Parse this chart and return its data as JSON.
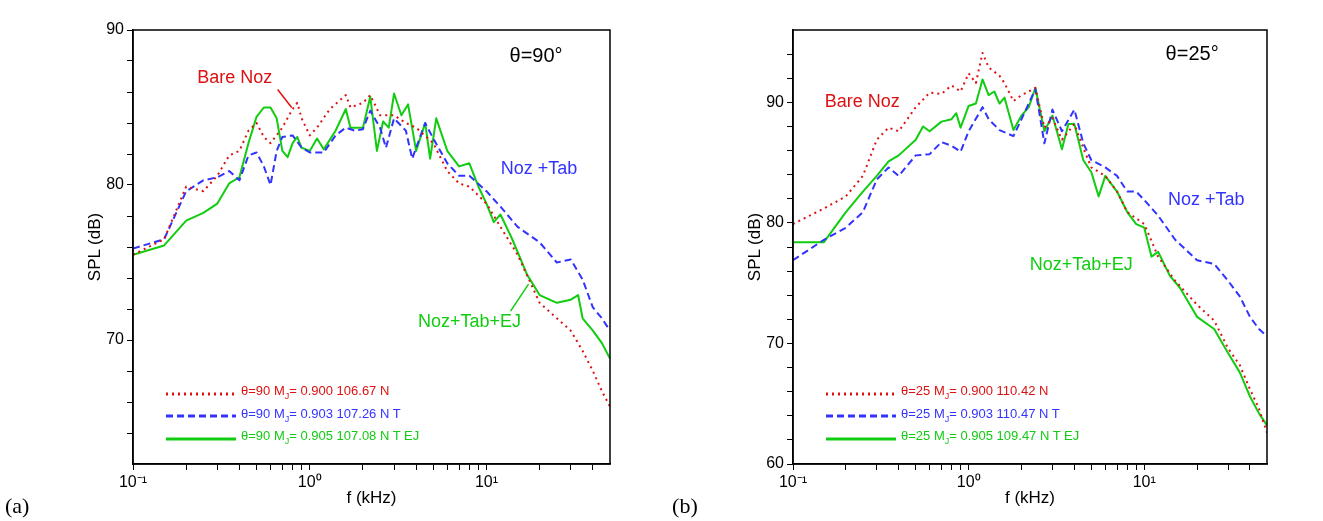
{
  "chart_data": [
    {
      "type": "line",
      "xlabel": "f (kHz)",
      "ylabel": "SPL (dB)",
      "log": "x",
      "xlim": [
        0.1,
        50
      ],
      "ylim": [
        62,
        90
      ],
      "xticks": [
        {
          "value": 0.1,
          "label": "10⁻¹"
        },
        {
          "value": 0.2,
          "label": null
        },
        {
          "value": 0.3,
          "label": null
        },
        {
          "value": 0.4,
          "label": null
        },
        {
          "value": 0.5,
          "label": null
        },
        {
          "value": 0.6,
          "label": null
        },
        {
          "value": 0.7,
          "label": null
        },
        {
          "value": 0.8,
          "label": null
        },
        {
          "value": 0.9,
          "label": null
        },
        {
          "value": 1,
          "label": "10⁰"
        },
        {
          "value": 2,
          "label": null
        },
        {
          "value": 3,
          "label": null
        },
        {
          "value": 4,
          "label": null
        },
        {
          "value": 5,
          "label": null
        },
        {
          "value": 6,
          "label": null
        },
        {
          "value": 7,
          "label": null
        },
        {
          "value": 8,
          "label": null
        },
        {
          "value": 9,
          "label": null
        },
        {
          "value": 10,
          "label": "10¹"
        },
        {
          "value": 20,
          "label": null
        },
        {
          "value": 30,
          "label": null
        },
        {
          "value": 40,
          "label": null
        }
      ],
      "yticks": [
        {
          "value": 64,
          "label": null
        },
        {
          "value": 66,
          "label": null
        },
        {
          "value": 68,
          "label": null
        },
        70,
        {
          "value": 72,
          "label": null
        },
        {
          "value": 74,
          "label": null
        },
        {
          "value": 76,
          "label": null
        },
        {
          "value": 78,
          "label": null
        },
        80,
        {
          "value": 82,
          "label": null
        },
        {
          "value": 84,
          "label": null
        },
        {
          "value": 86,
          "label": null
        },
        {
          "value": 88,
          "label": null
        },
        90
      ],
      "legend": "bottom left",
      "marker": "none",
      "series": [
        {
          "name": "θ=90 M$_{J}$= 0.900  106.67  N",
          "color": "#dd1111",
          "line_style": "dotted",
          "x": [
            0.1,
            0.15,
            0.2,
            0.25,
            0.3,
            0.35,
            0.4,
            0.45,
            0.5,
            0.55,
            0.6,
            0.7,
            0.8,
            0.85,
            0.9,
            1.0,
            1.1,
            1.3,
            1.6,
            1.7,
            2.0,
            2.2,
            2.5,
            3,
            3.5,
            4,
            5,
            6,
            7,
            8,
            10,
            12,
            15,
            20,
            25,
            30,
            35,
            40,
            45,
            50
          ],
          "values": [
            75.5,
            76.5,
            79.9,
            79.6,
            80.6,
            81.9,
            82.2,
            83.5,
            84.0,
            83.1,
            82.7,
            83.7,
            84.9,
            85.3,
            84.3,
            83.2,
            83.7,
            84.9,
            85.8,
            85.0,
            85.3,
            85.8,
            84.5,
            84.5,
            84.0,
            83.7,
            82.7,
            80.9,
            80.1,
            79.9,
            78.8,
            77.3,
            75.5,
            72.4,
            71.4,
            70.6,
            69.3,
            68.0,
            66.7,
            65.7
          ]
        },
        {
          "name": "θ=90 M$_{J}$= 0.903  107.26  N T",
          "color": "#3333ff",
          "line_style": "dashed",
          "x": [
            0.1,
            0.15,
            0.2,
            0.25,
            0.3,
            0.35,
            0.4,
            0.45,
            0.5,
            0.55,
            0.6,
            0.65,
            0.7,
            0.8,
            0.9,
            1.0,
            1.2,
            1.4,
            1.6,
            1.8,
            2.0,
            2.2,
            2.5,
            2.7,
            3,
            3.5,
            3.8,
            4.5,
            5,
            6,
            7,
            8,
            10,
            12,
            15,
            20,
            25,
            30,
            35,
            40,
            45,
            50
          ],
          "values": [
            75.9,
            76.5,
            79.6,
            80.3,
            80.5,
            80.9,
            80.3,
            81.9,
            82.1,
            81.2,
            80.0,
            82.2,
            83.1,
            83.2,
            82.4,
            82.1,
            82.1,
            83.2,
            83.7,
            83.5,
            83.6,
            84.8,
            83.7,
            82.4,
            84.3,
            83.5,
            81.7,
            84.0,
            83.0,
            81.4,
            80.6,
            80.6,
            79.6,
            78.6,
            77.3,
            76.3,
            75.0,
            75.2,
            73.9,
            72.1,
            71.4,
            70.6
          ]
        },
        {
          "name": "θ=90 M$_{J}$= 0.905  107.08  N T EJ",
          "color": "#11cc11",
          "line_style": "solid",
          "x": [
            0.1,
            0.15,
            0.2,
            0.25,
            0.3,
            0.35,
            0.4,
            0.45,
            0.5,
            0.55,
            0.6,
            0.65,
            0.7,
            0.75,
            0.8,
            0.85,
            0.9,
            1.0,
            1.1,
            1.2,
            1.4,
            1.6,
            1.7,
            2.0,
            2.2,
            2.4,
            2.6,
            2.8,
            3.0,
            3.3,
            3.6,
            4.0,
            4.5,
            4.8,
            5.2,
            6,
            7,
            8,
            9,
            10,
            11,
            12,
            14,
            17,
            20,
            25,
            30,
            33,
            35,
            40,
            45,
            50
          ],
          "values": [
            75.5,
            76.1,
            77.7,
            78.2,
            78.8,
            80.1,
            80.5,
            82.7,
            84.4,
            85.0,
            85.0,
            84.3,
            82.2,
            81.8,
            82.7,
            83.1,
            82.4,
            82.2,
            83.0,
            82.3,
            83.5,
            84.9,
            83.7,
            83.7,
            85.7,
            82.2,
            84.1,
            83.7,
            85.9,
            84.5,
            85.2,
            82.2,
            84.0,
            81.7,
            84.3,
            82.2,
            81.2,
            81.4,
            79.9,
            78.8,
            77.6,
            78.1,
            76.5,
            74.2,
            72.9,
            72.4,
            72.6,
            72.9,
            71.4,
            70.6,
            69.8,
            68.8
          ]
        }
      ],
      "annotations": [
        "θ=90°",
        {
          "text": "Bare Noz",
          "x": 0.79,
          "y": 85
        },
        "Noz +Tab",
        {
          "text": "Noz+Tab+EJ",
          "x": 17.3,
          "y": 73.6
        },
        "(a)"
      ]
    },
    {
      "type": "line",
      "xlabel": "f (kHz)",
      "ylabel": "SPL (dB)",
      "log": "x",
      "xlim": [
        0.1,
        50
      ],
      "ylim": [
        60,
        96
      ],
      "xticks": [
        {
          "value": 0.1,
          "label": "10⁻¹"
        },
        {
          "value": 0.2,
          "label": null
        },
        {
          "value": 0.3,
          "label": null
        },
        {
          "value": 0.4,
          "label": null
        },
        {
          "value": 0.5,
          "label": null
        },
        {
          "value": 0.6,
          "label": null
        },
        {
          "value": 0.7,
          "label": null
        },
        {
          "value": 0.8,
          "label": null
        },
        {
          "value": 0.9,
          "label": null
        },
        {
          "value": 1,
          "label": "10⁰"
        },
        {
          "value": 2,
          "label": null
        },
        {
          "value": 3,
          "label": null
        },
        {
          "value": 4,
          "label": null
        },
        {
          "value": 5,
          "label": null
        },
        {
          "value": 6,
          "label": null
        },
        {
          "value": 7,
          "label": null
        },
        {
          "value": 8,
          "label": null
        },
        {
          "value": 9,
          "label": null
        },
        {
          "value": 10,
          "label": "10¹"
        },
        {
          "value": 20,
          "label": null
        },
        {
          "value": 30,
          "label": null
        },
        {
          "value": 40,
          "label": null
        }
      ],
      "yticks": [
        60,
        {
          "value": 62,
          "label": null
        },
        {
          "value": 64,
          "label": null
        },
        {
          "value": 66,
          "label": null
        },
        {
          "value": 68,
          "label": null
        },
        70,
        {
          "value": 72,
          "label": null
        },
        {
          "value": 74,
          "label": null
        },
        {
          "value": 76,
          "label": null
        },
        {
          "value": 78,
          "label": null
        },
        80,
        {
          "value": 82,
          "label": null
        },
        {
          "value": 84,
          "label": null
        },
        {
          "value": 86,
          "label": null
        },
        {
          "value": 88,
          "label": null
        },
        90,
        {
          "value": 92,
          "label": null
        },
        {
          "value": 94,
          "label": null
        }
      ],
      "legend": "bottom left",
      "marker": "none",
      "series": [
        {
          "name": "θ=25 M$_{J}$= 0.900  110.42  N",
          "color": "#dd1111",
          "line_style": "dotted",
          "x": [
            0.1,
            0.15,
            0.2,
            0.25,
            0.3,
            0.35,
            0.4,
            0.5,
            0.6,
            0.7,
            0.8,
            0.9,
            1.0,
            1.1,
            1.2,
            1.3,
            1.5,
            1.6,
            1.8,
            2.0,
            2.2,
            2.4,
            2.7,
            3.0,
            3.4,
            4.0,
            4.5,
            5,
            6,
            7,
            8,
            10,
            12,
            15,
            20,
            25,
            30,
            35,
            40,
            45,
            50
          ],
          "values": [
            79.9,
            81.2,
            82.2,
            83.9,
            86.9,
            87.9,
            87.6,
            89.6,
            90.8,
            90.7,
            91.4,
            90.9,
            92.4,
            91.6,
            94.1,
            92.9,
            92.2,
            91.6,
            90.1,
            90.6,
            90.9,
            91.2,
            87.9,
            88.7,
            86.9,
            88.2,
            86.2,
            84.6,
            83.9,
            82.6,
            80.9,
            79.9,
            77.2,
            75.2,
            73.2,
            71.9,
            69.6,
            68.2,
            66.2,
            64.6,
            62.6
          ]
        },
        {
          "name": "θ=25 M$_{J}$= 0.903  110.47  N T",
          "color": "#3333ff",
          "line_style": "dashed",
          "x": [
            0.1,
            0.15,
            0.2,
            0.25,
            0.3,
            0.35,
            0.4,
            0.5,
            0.6,
            0.7,
            0.8,
            0.9,
            1.0,
            1.2,
            1.3,
            1.5,
            1.8,
            2.0,
            2.4,
            2.7,
            3.0,
            3.4,
            4.0,
            4.5,
            5,
            6,
            7,
            8,
            9,
            10,
            12,
            15,
            20,
            25,
            30,
            35,
            40,
            45,
            50
          ],
          "values": [
            76.9,
            78.6,
            79.6,
            80.9,
            83.6,
            84.6,
            83.9,
            85.6,
            85.7,
            86.7,
            86.4,
            85.9,
            87.6,
            89.6,
            88.6,
            87.7,
            87.2,
            88.6,
            91.1,
            86.6,
            89.4,
            87.6,
            89.4,
            86.6,
            85.2,
            84.6,
            83.9,
            82.6,
            82.6,
            81.9,
            80.6,
            78.6,
            76.9,
            76.6,
            75.2,
            73.9,
            72.2,
            71.2,
            70.6
          ]
        },
        {
          "name": "θ=25 M$_{J}$= 0.905  109.47  N T EJ",
          "color": "#11cc11",
          "line_style": "solid",
          "x": [
            0.1,
            0.15,
            0.2,
            0.25,
            0.3,
            0.35,
            0.4,
            0.5,
            0.55,
            0.6,
            0.7,
            0.8,
            0.85,
            0.9,
            1.0,
            1.1,
            1.2,
            1.3,
            1.4,
            1.5,
            1.6,
            1.8,
            2.0,
            2.2,
            2.4,
            2.7,
            3.0,
            3.4,
            3.7,
            4.0,
            4.5,
            5,
            5.5,
            6,
            7,
            8,
            9,
            10,
            11,
            12,
            14,
            16,
            20,
            25,
            30,
            35,
            40,
            45,
            50
          ],
          "values": [
            78.4,
            78.4,
            80.9,
            82.6,
            83.9,
            85.1,
            85.6,
            86.9,
            88.0,
            87.6,
            88.4,
            88.6,
            89.1,
            87.9,
            89.7,
            89.9,
            91.9,
            90.6,
            90.9,
            89.9,
            90.4,
            87.7,
            88.9,
            89.6,
            91.2,
            87.6,
            88.9,
            86.1,
            88.2,
            88.2,
            85.2,
            84.2,
            82.2,
            83.9,
            82.6,
            80.9,
            79.9,
            79.6,
            77.2,
            77.6,
            75.6,
            74.6,
            72.2,
            71.2,
            69.2,
            67.6,
            65.6,
            64.2,
            63.2
          ]
        }
      ],
      "annotations": [
        "θ=25°",
        "Bare Noz",
        "Noz +Tab",
        "Noz+Tab+EJ",
        "(b)"
      ]
    }
  ]
}
